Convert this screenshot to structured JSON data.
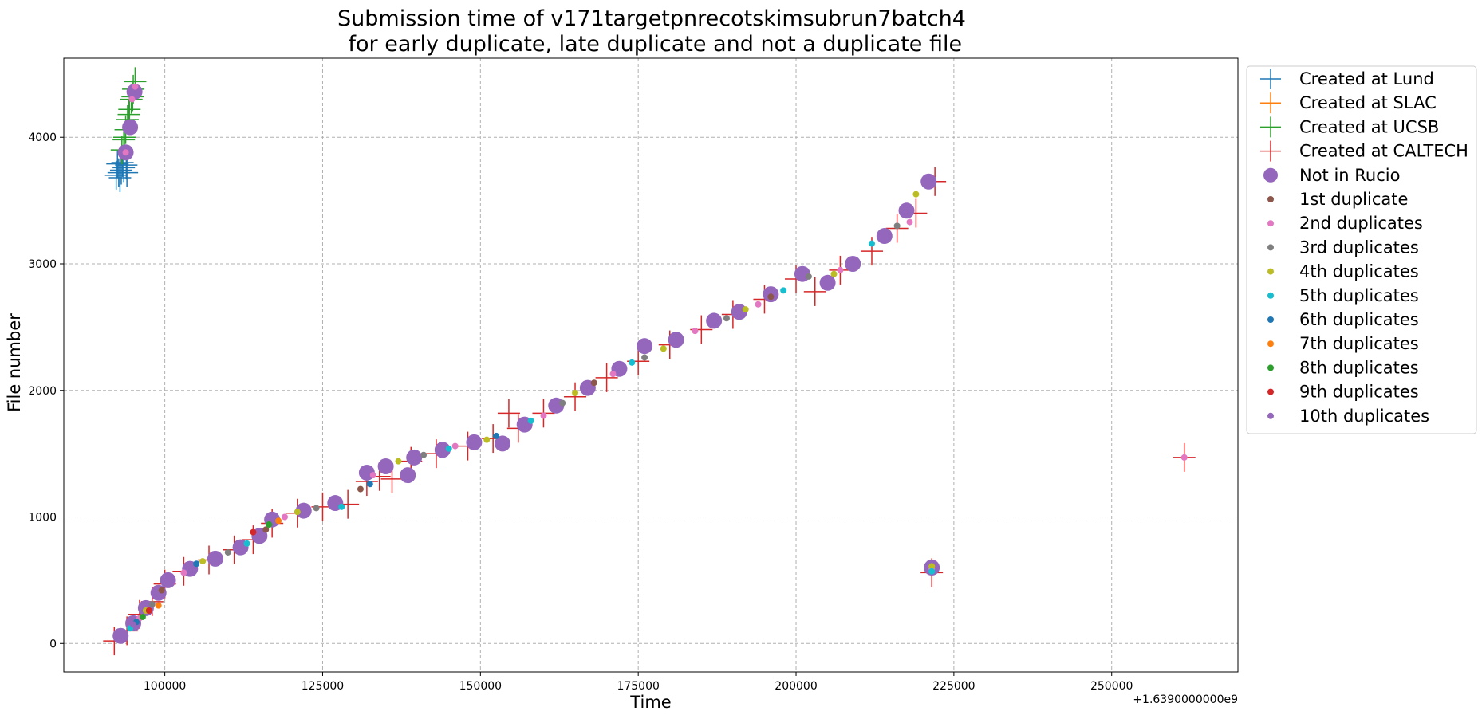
{
  "chart_data": {
    "type": "scatter",
    "title_lines": [
      "Submission time of v171targetpnrecotskimsubrun7batch4",
      " for early duplicate, late duplicate and not a duplicate file"
    ],
    "xlabel": "Time",
    "ylabel": "File number",
    "x_offset_label": "+1.6390000000e9",
    "xlim": [
      84000,
      270000
    ],
    "ylim": [
      -225,
      4625
    ],
    "xticks": [
      100000,
      125000,
      150000,
      175000,
      200000,
      225000,
      250000
    ],
    "xtick_labels": [
      "100000",
      "125000",
      "150000",
      "175000",
      "200000",
      "225000",
      "250000"
    ],
    "yticks": [
      0,
      1000,
      2000,
      3000,
      4000
    ],
    "ytick_labels": [
      "0",
      "1000",
      "2000",
      "3000",
      "4000"
    ],
    "grid": true,
    "legend_placement": "outside-upper-right",
    "series": [
      {
        "name": "Created at Lund",
        "marker": "+",
        "color": "#1f77b4",
        "points": [
          [
            92300,
            3700
          ],
          [
            92700,
            3720
          ],
          [
            93100,
            3740
          ],
          [
            93500,
            3760
          ],
          [
            93900,
            3780
          ],
          [
            92500,
            3790
          ],
          [
            93300,
            3800
          ],
          [
            92900,
            3680
          ],
          [
            94000,
            3720
          ]
        ]
      },
      {
        "name": "Created at SLAC",
        "marker": "+",
        "color": "#ff7f0e",
        "points": []
      },
      {
        "name": "Created at UCSB",
        "marker": "+",
        "color": "#2ca02c",
        "points": [
          [
            93200,
            3900
          ],
          [
            93500,
            3980
          ],
          [
            93800,
            4060
          ],
          [
            94100,
            4140
          ],
          [
            94400,
            4220
          ],
          [
            94700,
            4300
          ],
          [
            95000,
            4380
          ],
          [
            95300,
            4440
          ],
          [
            93600,
            4000
          ],
          [
            94300,
            4180
          ],
          [
            94900,
            4320
          ]
        ]
      },
      {
        "name": "Created at CALTECH",
        "marker": "+",
        "color": "#d62728",
        "points": [
          [
            92000,
            20
          ],
          [
            94000,
            100
          ],
          [
            96000,
            230
          ],
          [
            98000,
            330
          ],
          [
            100000,
            470
          ],
          [
            103000,
            570
          ],
          [
            107000,
            660
          ],
          [
            111000,
            740
          ],
          [
            114000,
            820
          ],
          [
            117000,
            950
          ],
          [
            121000,
            1030
          ],
          [
            125000,
            1080
          ],
          [
            129000,
            1100
          ],
          [
            132000,
            1280
          ],
          [
            134000,
            1320
          ],
          [
            136000,
            1300
          ],
          [
            139000,
            1440
          ],
          [
            143000,
            1500
          ],
          [
            148000,
            1560
          ],
          [
            152000,
            1620
          ],
          [
            154500,
            1820
          ],
          [
            156000,
            1700
          ],
          [
            160000,
            1820
          ],
          [
            165000,
            1950
          ],
          [
            170000,
            2100
          ],
          [
            175000,
            2230
          ],
          [
            180000,
            2360
          ],
          [
            185000,
            2480
          ],
          [
            190000,
            2600
          ],
          [
            195000,
            2720
          ],
          [
            200000,
            2880
          ],
          [
            203000,
            2780
          ],
          [
            207000,
            2950
          ],
          [
            212000,
            3100
          ],
          [
            216000,
            3280
          ],
          [
            219000,
            3400
          ],
          [
            222000,
            3650
          ],
          [
            221500,
            560
          ],
          [
            261500,
            1470
          ]
        ]
      },
      {
        "name": "Not in Rucio",
        "marker": "o",
        "color": "#9467bd",
        "points": [
          [
            93000,
            60
          ],
          [
            95000,
            160
          ],
          [
            97000,
            280
          ],
          [
            99000,
            400
          ],
          [
            100500,
            500
          ],
          [
            104000,
            590
          ],
          [
            108000,
            670
          ],
          [
            112000,
            760
          ],
          [
            115000,
            850
          ],
          [
            117000,
            980
          ],
          [
            122000,
            1050
          ],
          [
            127000,
            1110
          ],
          [
            132000,
            1350
          ],
          [
            135000,
            1400
          ],
          [
            138500,
            1330
          ],
          [
            139500,
            1470
          ],
          [
            144000,
            1530
          ],
          [
            149000,
            1590
          ],
          [
            153500,
            1580
          ],
          [
            157000,
            1730
          ],
          [
            162000,
            1880
          ],
          [
            167000,
            2020
          ],
          [
            172000,
            2170
          ],
          [
            176000,
            2350
          ],
          [
            181000,
            2400
          ],
          [
            187000,
            2550
          ],
          [
            191000,
            2620
          ],
          [
            196000,
            2760
          ],
          [
            201000,
            2920
          ],
          [
            205000,
            2850
          ],
          [
            209000,
            3000
          ],
          [
            214000,
            3220
          ],
          [
            217500,
            3420
          ],
          [
            221000,
            3650
          ],
          [
            221500,
            600
          ],
          [
            93800,
            3880
          ],
          [
            94500,
            4080
          ],
          [
            95200,
            4360
          ]
        ]
      },
      {
        "name": "1st duplicate",
        "marker": ".",
        "color": "#8c564b",
        "points": [
          [
            99500,
            420
          ],
          [
            116000,
            900
          ],
          [
            131000,
            1220
          ],
          [
            168000,
            2060
          ],
          [
            196000,
            2740
          ]
        ]
      },
      {
        "name": "2nd duplicates",
        "marker": ".",
        "color": "#e377c2",
        "points": [
          [
            96000,
            200
          ],
          [
            103000,
            560
          ],
          [
            119000,
            1000
          ],
          [
            133000,
            1330
          ],
          [
            146000,
            1560
          ],
          [
            160000,
            1800
          ],
          [
            171000,
            2130
          ],
          [
            184000,
            2470
          ],
          [
            194000,
            2680
          ],
          [
            207000,
            2950
          ],
          [
            218000,
            3330
          ],
          [
            93800,
            3880
          ],
          [
            94800,
            4300
          ],
          [
            95300,
            4400
          ],
          [
            221500,
            590
          ],
          [
            261500,
            1470
          ]
        ]
      },
      {
        "name": "3rd duplicates",
        "marker": ".",
        "color": "#7f7f7f",
        "points": [
          [
            98000,
            310
          ],
          [
            110000,
            720
          ],
          [
            124000,
            1070
          ],
          [
            141000,
            1490
          ],
          [
            163000,
            1900
          ],
          [
            176000,
            2260
          ],
          [
            189000,
            2570
          ],
          [
            202000,
            2900
          ],
          [
            216000,
            3300
          ]
        ]
      },
      {
        "name": "4th duplicates",
        "marker": ".",
        "color": "#bcbd22",
        "points": [
          [
            97000,
            260
          ],
          [
            106000,
            650
          ],
          [
            121000,
            1040
          ],
          [
            137000,
            1440
          ],
          [
            151000,
            1610
          ],
          [
            165000,
            1980
          ],
          [
            179000,
            2330
          ],
          [
            192000,
            2640
          ],
          [
            206000,
            2920
          ],
          [
            219000,
            3550
          ],
          [
            221500,
            610
          ]
        ]
      },
      {
        "name": "5th duplicates",
        "marker": ".",
        "color": "#17becf",
        "points": [
          [
            94500,
            120
          ],
          [
            113000,
            790
          ],
          [
            128000,
            1080
          ],
          [
            145000,
            1540
          ],
          [
            158000,
            1760
          ],
          [
            174000,
            2220
          ],
          [
            198000,
            2790
          ],
          [
            212000,
            3160
          ],
          [
            221500,
            570
          ]
        ]
      },
      {
        "name": "6th duplicates",
        "marker": ".",
        "color": "#1f77b4",
        "points": [
          [
            95500,
            170
          ],
          [
            105000,
            630
          ],
          [
            132500,
            1260
          ],
          [
            152500,
            1640
          ]
        ]
      },
      {
        "name": "7th duplicates",
        "marker": ".",
        "color": "#ff7f0e",
        "points": [
          [
            99000,
            300
          ],
          [
            118000,
            970
          ]
        ]
      },
      {
        "name": "8th duplicates",
        "marker": ".",
        "color": "#2ca02c",
        "points": [
          [
            96500,
            210
          ],
          [
            116500,
            940
          ]
        ]
      },
      {
        "name": "9th duplicates",
        "marker": ".",
        "color": "#d62728",
        "points": [
          [
            97500,
            260
          ],
          [
            114000,
            880
          ]
        ]
      },
      {
        "name": "10th duplicates",
        "marker": ".",
        "color": "#9467bd",
        "points": [
          [
            95000,
            150
          ]
        ]
      }
    ]
  }
}
